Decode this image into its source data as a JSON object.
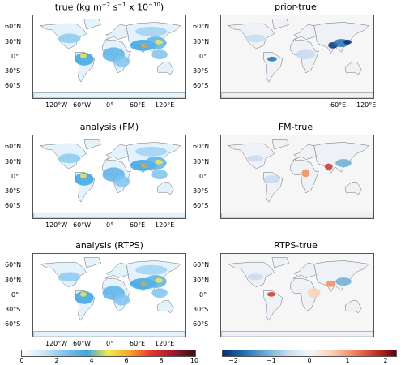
{
  "panels": [
    {
      "title_main": "true (kg m",
      "title_sup1": "−2",
      "title_mid": " s",
      "title_sup2": "−1",
      "title_end": " x 10",
      "title_sup3": "−10",
      "title_close": ")",
      "kind": "abs"
    },
    {
      "title": "prior-true",
      "kind": "diff_prior"
    },
    {
      "title": "analysis (FM)",
      "kind": "abs"
    },
    {
      "title": "FM-true",
      "kind": "diff_fm"
    },
    {
      "title": "analysis (RTPS)",
      "kind": "abs"
    },
    {
      "title": "RTPS-true",
      "kind": "diff_rtps"
    }
  ],
  "lat_labels": [
    "60°N",
    "30°N",
    "0°",
    "30°S",
    "60°S"
  ],
  "lon_labels": [
    "120°W",
    "60°W",
    "0°",
    "60°E",
    "120°E"
  ],
  "colorbar_left": {
    "ticks": [
      "0",
      "2",
      "4",
      "6",
      "8",
      "10"
    ],
    "range": [
      0,
      10
    ],
    "colors": [
      "#ffffff",
      "#cfe6f7",
      "#7fc3ee",
      "#3ba6e0",
      "#f7e84a",
      "#f6a02c",
      "#e8332a",
      "#9a1b2a",
      "#3a0d16"
    ]
  },
  "colorbar_right": {
    "ticks": [
      "−2",
      "−1",
      "0",
      "1",
      "2"
    ],
    "range": [
      -2,
      2
    ],
    "colors": [
      "#08306b",
      "#2171b5",
      "#6baed6",
      "#c6dbef",
      "#f7f7f7",
      "#fcd0b5",
      "#f08a5d",
      "#c7372f",
      "#67000d"
    ]
  },
  "colors": {
    "land": "#f2f2f2",
    "coast": "#6d6d6d",
    "frame": "#555555"
  }
}
